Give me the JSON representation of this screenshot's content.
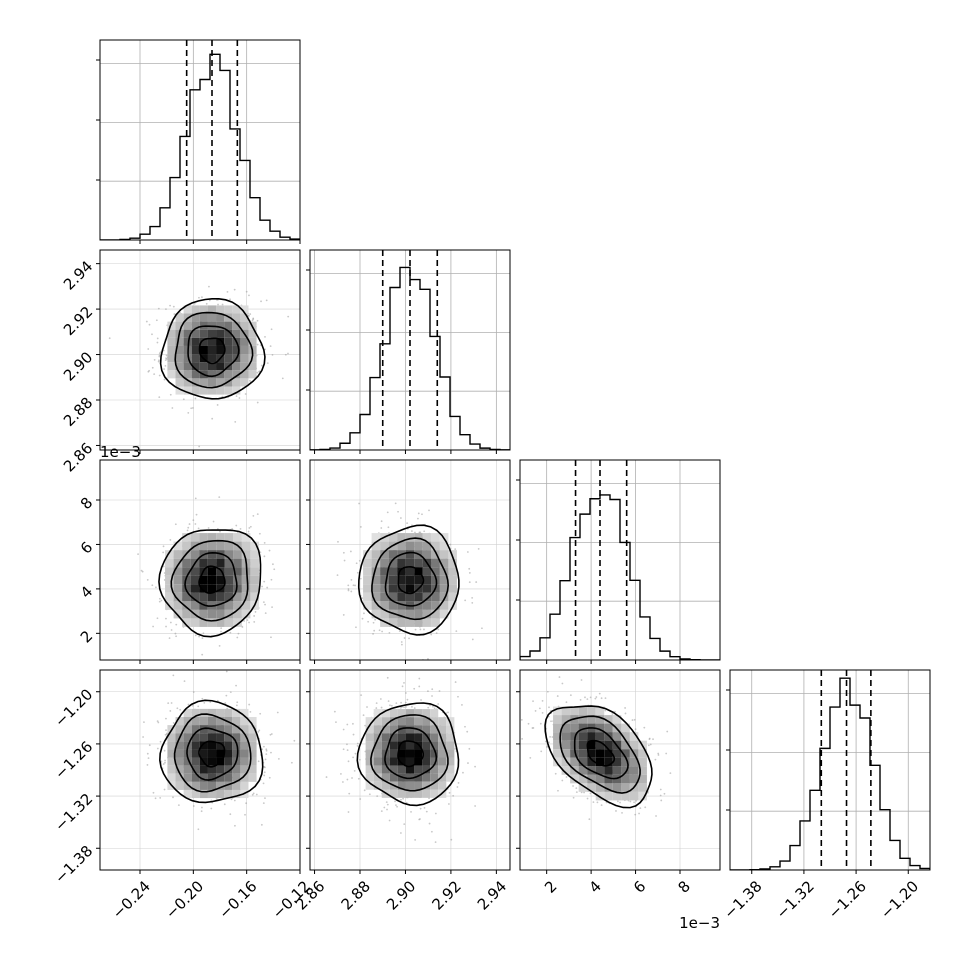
{
  "figure": {
    "description": "corner plot",
    "n_params": 4,
    "x_exponent_label": "1e−3",
    "y_exponent_label": "1e−3"
  },
  "chart_data": {
    "type": "corner",
    "grid": true,
    "params": [
      {
        "range": [
          -0.27,
          -0.12
        ],
        "ticks": [
          -0.24,
          -0.2,
          -0.16,
          -0.12
        ],
        "tick_labels": [
          "−0.24",
          "−0.20",
          "−0.16",
          "−0.12"
        ],
        "median": -0.186,
        "q16": -0.205,
        "q84": -0.167,
        "sd": 0.019,
        "hist_peak": 0.9
      },
      {
        "range": [
          2.858,
          2.946
        ],
        "ticks": [
          2.86,
          2.88,
          2.9,
          2.92,
          2.94
        ],
        "tick_labels": [
          "2.86",
          "2.88",
          "2.90",
          "2.92",
          "2.94"
        ],
        "median": 2.902,
        "q16": 2.89,
        "q84": 2.914,
        "sd": 0.011,
        "hist_peak": 0.92
      },
      {
        "range": [
          0.0008,
          0.0098
        ],
        "ticks": [
          0.002,
          0.004,
          0.006,
          0.008
        ],
        "tick_labels": [
          "2",
          "4",
          "6",
          "8"
        ],
        "median": 0.0044,
        "q16": 0.0033,
        "q84": 0.0056,
        "sd": 0.0012,
        "hist_peak": 0.88,
        "exponent": "1e−3"
      },
      {
        "range": [
          -1.405,
          -1.175
        ],
        "ticks": [
          -1.38,
          -1.32,
          -1.26,
          -1.2
        ],
        "tick_labels": [
          "−1.38",
          "−1.32",
          "−1.26",
          "−1.20"
        ],
        "median": -1.271,
        "q16": -1.3,
        "q84": -1.243,
        "sd": 0.029,
        "hist_peak": 0.93
      }
    ],
    "correlations": [
      [
        1,
        0.0,
        0.05,
        0.0
      ],
      [
        0.0,
        1,
        0.0,
        0.0
      ],
      [
        0.05,
        0.0,
        1,
        -0.45
      ],
      [
        0.0,
        0.0,
        -0.45,
        1
      ]
    ],
    "contour_levels_sigma": [
      0.5,
      1.0,
      1.5,
      2.0
    ],
    "histogram_yticks": [
      0.3,
      0.6,
      0.9
    ],
    "quantiles": [
      0.16,
      0.5,
      0.84
    ]
  }
}
